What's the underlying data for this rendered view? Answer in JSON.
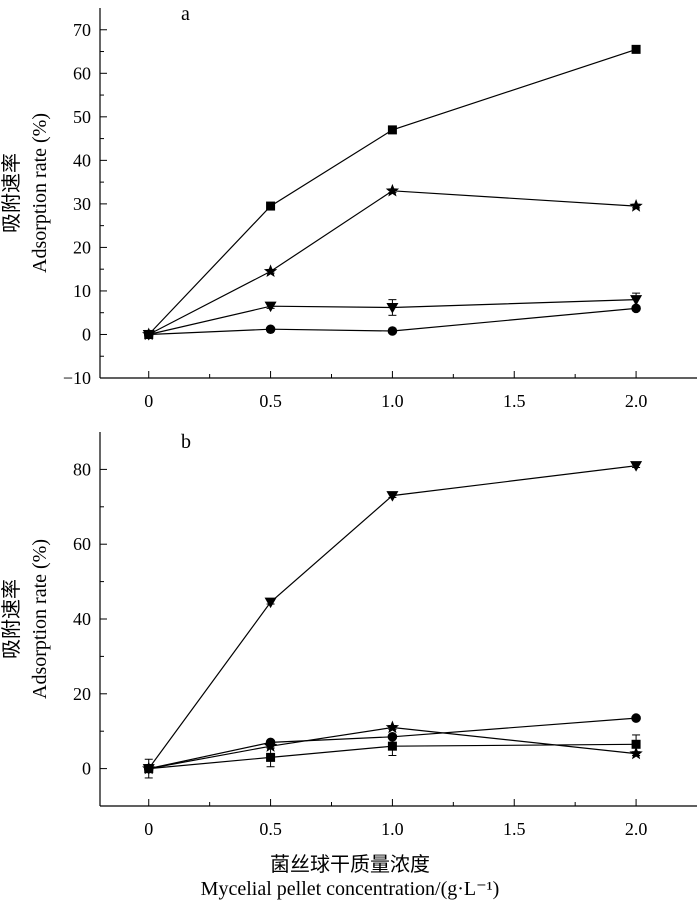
{
  "chart_data": [
    {
      "type": "line",
      "panel": "a",
      "ylabel_cn": "吸附速率",
      "ylabel_en": "Adsorption rate (%)",
      "x": [
        0,
        0.5,
        1.0,
        2.0
      ],
      "xlim": [
        -0.2,
        2.25
      ],
      "ylim": [
        -10,
        75
      ],
      "xticks": [
        0,
        0.5,
        1.0,
        1.5,
        2.0
      ],
      "xtick_labels": [
        "0",
        "0.5",
        "1.0",
        "1.5",
        "2.0"
      ],
      "yticks": [
        -10,
        0,
        10,
        20,
        30,
        40,
        50,
        60,
        70
      ],
      "ytick_labels": [
        "−10",
        "0",
        "10",
        "20",
        "30",
        "40",
        "50",
        "60",
        "70"
      ],
      "series": [
        {
          "marker": "square",
          "values": [
            0,
            29.5,
            47,
            65.5
          ],
          "errors": [
            0.4,
            0.4,
            0.4,
            0.4
          ]
        },
        {
          "marker": "star",
          "values": [
            0,
            14.5,
            33,
            29.5
          ],
          "errors": [
            0.4,
            0.4,
            0.4,
            0.4
          ]
        },
        {
          "marker": "triangle-down",
          "values": [
            0,
            6.5,
            6.2,
            8
          ],
          "errors": [
            0.4,
            0.5,
            1.8,
            1.5
          ]
        },
        {
          "marker": "circle",
          "values": [
            0,
            1.2,
            0.8,
            6
          ],
          "errors": [
            0.3,
            0.3,
            0.3,
            0.5
          ]
        }
      ]
    },
    {
      "type": "line",
      "panel": "b",
      "ylabel_cn": "吸附速率",
      "ylabel_en": "Adsorption rate (%)",
      "x": [
        0,
        0.5,
        1.0,
        2.0
      ],
      "xlim": [
        -0.2,
        2.25
      ],
      "ylim": [
        -10,
        90
      ],
      "xticks": [
        0,
        0.5,
        1.0,
        1.5,
        2.0
      ],
      "xtick_labels": [
        "0",
        "0.5",
        "1.0",
        "1.5",
        "2.0"
      ],
      "yticks": [
        0,
        20,
        40,
        60,
        80
      ],
      "ytick_labels": [
        "0",
        "20",
        "40",
        "60",
        "80"
      ],
      "series": [
        {
          "marker": "triangle-down",
          "values": [
            0,
            44.5,
            73,
            81
          ],
          "errors": [
            0.5,
            0.5,
            0.5,
            0.5
          ]
        },
        {
          "marker": "circle",
          "values": [
            0,
            7,
            8.5,
            13.5
          ],
          "errors": [
            0.5,
            0.5,
            0.5,
            0.5
          ]
        },
        {
          "marker": "star",
          "values": [
            0,
            6,
            11,
            4
          ],
          "errors": [
            0.5,
            0.5,
            0.5,
            0.5
          ]
        },
        {
          "marker": "square",
          "values": [
            0,
            3,
            6,
            6.5
          ],
          "errors": [
            2.5,
            2.5,
            2.5,
            2.5
          ]
        }
      ]
    }
  ],
  "xlabel_cn": "菌丝球干质量浓度",
  "xlabel_en": "Mycelial pellet concentration/(g·L⁻¹)"
}
